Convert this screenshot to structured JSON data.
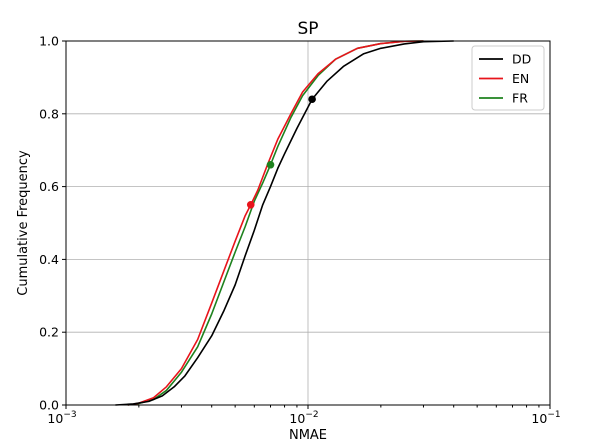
{
  "chart_data": {
    "type": "line",
    "title": "SP",
    "xlabel": "NMAE",
    "ylabel": "Cumulative Frequency",
    "xscale": "log",
    "xlim": [
      0.001,
      0.1
    ],
    "ylim": [
      0.0,
      1.0
    ],
    "grid": true,
    "legend_position": "top-right",
    "x_ticks": [
      {
        "value": 0.001,
        "base": "10",
        "exp": "−3"
      },
      {
        "value": 0.01,
        "base": "10",
        "exp": "−2"
      },
      {
        "value": 0.1,
        "base": "10",
        "exp": "−1"
      }
    ],
    "y_ticks": [
      {
        "value": 0.0,
        "label": "0.0"
      },
      {
        "value": 0.2,
        "label": "0.2"
      },
      {
        "value": 0.4,
        "label": "0.4"
      },
      {
        "value": 0.6,
        "label": "0.6"
      },
      {
        "value": 0.8,
        "label": "0.8"
      },
      {
        "value": 1.0,
        "label": "1.0"
      }
    ],
    "series": [
      {
        "name": "DD",
        "color": "#000000",
        "points": [
          [
            0.0016,
            0.0
          ],
          [
            0.0019,
            0.003
          ],
          [
            0.0022,
            0.01
          ],
          [
            0.0025,
            0.025
          ],
          [
            0.0028,
            0.05
          ],
          [
            0.0031,
            0.08
          ],
          [
            0.0035,
            0.13
          ],
          [
            0.004,
            0.19
          ],
          [
            0.0045,
            0.26
          ],
          [
            0.005,
            0.33
          ],
          [
            0.0055,
            0.41
          ],
          [
            0.006,
            0.48
          ],
          [
            0.0065,
            0.55
          ],
          [
            0.007,
            0.6
          ],
          [
            0.0075,
            0.65
          ],
          [
            0.008,
            0.69
          ],
          [
            0.009,
            0.76
          ],
          [
            0.0104,
            0.84
          ],
          [
            0.012,
            0.89
          ],
          [
            0.014,
            0.93
          ],
          [
            0.017,
            0.965
          ],
          [
            0.02,
            0.98
          ],
          [
            0.025,
            0.992
          ],
          [
            0.03,
            0.998
          ],
          [
            0.04,
            1.0
          ]
        ],
        "marker": [
          0.0104,
          0.84
        ]
      },
      {
        "name": "EN",
        "color": "#e8141b",
        "points": [
          [
            0.0018,
            0.0
          ],
          [
            0.002,
            0.005
          ],
          [
            0.0023,
            0.02
          ],
          [
            0.0026,
            0.05
          ],
          [
            0.003,
            0.1
          ],
          [
            0.0035,
            0.18
          ],
          [
            0.004,
            0.28
          ],
          [
            0.0045,
            0.37
          ],
          [
            0.005,
            0.45
          ],
          [
            0.0055,
            0.52
          ],
          [
            0.0058,
            0.55
          ],
          [
            0.0062,
            0.59
          ],
          [
            0.0068,
            0.66
          ],
          [
            0.0075,
            0.73
          ],
          [
            0.0085,
            0.8
          ],
          [
            0.0095,
            0.86
          ],
          [
            0.011,
            0.91
          ],
          [
            0.013,
            0.95
          ],
          [
            0.016,
            0.98
          ],
          [
            0.02,
            0.993
          ],
          [
            0.025,
            0.999
          ],
          [
            0.03,
            1.0
          ]
        ],
        "marker": [
          0.0058,
          0.55
        ]
      },
      {
        "name": "FR",
        "color": "#1e821e",
        "points": [
          [
            0.0018,
            0.0
          ],
          [
            0.002,
            0.004
          ],
          [
            0.0023,
            0.015
          ],
          [
            0.0026,
            0.04
          ],
          [
            0.003,
            0.09
          ],
          [
            0.0035,
            0.16
          ],
          [
            0.004,
            0.25
          ],
          [
            0.0045,
            0.34
          ],
          [
            0.005,
            0.42
          ],
          [
            0.0055,
            0.49
          ],
          [
            0.006,
            0.56
          ],
          [
            0.0065,
            0.61
          ],
          [
            0.007,
            0.66
          ],
          [
            0.0075,
            0.71
          ],
          [
            0.0085,
            0.79
          ],
          [
            0.0095,
            0.85
          ],
          [
            0.011,
            0.905
          ],
          [
            0.013,
            0.95
          ],
          [
            0.016,
            0.98
          ],
          [
            0.02,
            0.993
          ],
          [
            0.025,
            0.999
          ],
          [
            0.03,
            1.0
          ]
        ],
        "marker": [
          0.007,
          0.66
        ]
      }
    ]
  }
}
